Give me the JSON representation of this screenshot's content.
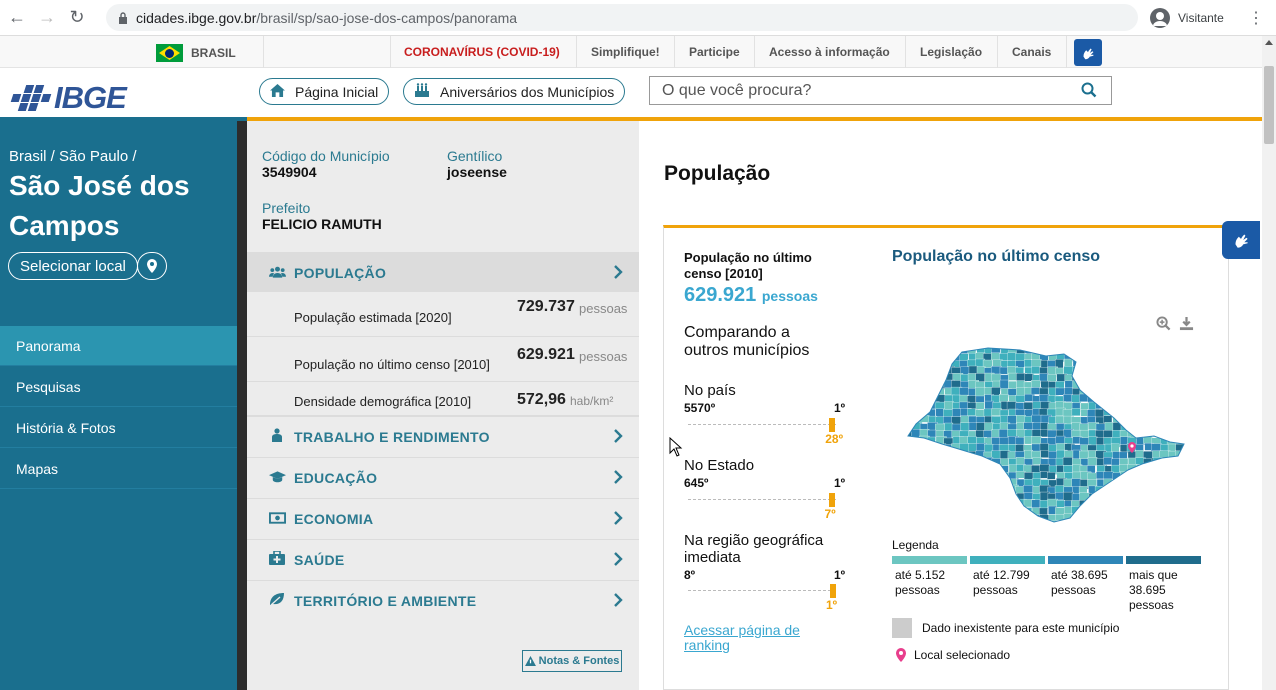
{
  "browser": {
    "url_host": "cidades.ibge.gov.br",
    "url_path": "/brasil/sp/sao-jose-dos-campos/panorama",
    "profile_label": "Visitante"
  },
  "govbar": {
    "country": "BRASIL",
    "links": [
      "CORONAVÍRUS (COVID-19)",
      "Simplifique!",
      "Participe",
      "Acesso à informação",
      "Legislação",
      "Canais"
    ]
  },
  "header": {
    "logo_text": "IBGE",
    "home_label": "Página Inicial",
    "anniv_label": "Aniversários dos Municípios",
    "search_placeholder": "O que você procura?"
  },
  "sidebar": {
    "breadcrumb": "Brasil / São Paulo /",
    "city_name": "São José dos Campos",
    "select_label": "Selecionar local",
    "nav": [
      "Panorama",
      "Pesquisas",
      "História & Fotos",
      "Mapas"
    ]
  },
  "info": {
    "codigo_label": "Código do Município",
    "codigo_value": "3549904",
    "gentilico_label": "Gentílico",
    "gentilico_value": "joseense",
    "prefeito_label": "Prefeito",
    "prefeito_value": "FELICIO RAMUTH"
  },
  "categories": {
    "populacao": "POPULAÇÃO",
    "trabalho": "TRABALHO E RENDIMENTO",
    "educacao": "EDUCAÇÃO",
    "economia": "ECONOMIA",
    "saude": "SAÚDE",
    "territorio": "TERRITÓRIO E AMBIENTE"
  },
  "indicators": [
    {
      "label": "População estimada [2020]",
      "value": "729.737",
      "unit": "pessoas"
    },
    {
      "label": "População no último censo [2010]",
      "value": "629.921",
      "unit": "pessoas"
    },
    {
      "label": "Densidade demográfica [2010]",
      "value": "572,96",
      "unit": "hab/km²"
    }
  ],
  "notas_label": "Notas & Fontes",
  "content": {
    "title": "População",
    "card_title": "População no último censo [2010]",
    "card_value": "629.921",
    "card_unit": "pessoas",
    "compare": "Comparando a outros municípios",
    "ranks": [
      {
        "title": "No país",
        "left": "5570º",
        "right": "1º",
        "pos": "28º",
        "fraction": 0.995
      },
      {
        "title": "No Estado",
        "left": "645º",
        "right": "1º",
        "pos": "7º",
        "fraction": 0.99
      },
      {
        "title": "Na região geográfica imediata",
        "left": "8º",
        "right": "1º",
        "pos": "1º",
        "fraction": 1.0
      }
    ],
    "rank_link": "Acessar página de ranking",
    "map_title": "População no último censo",
    "legend_title": "Legenda",
    "legend": [
      {
        "text": "até 5.152 pessoas",
        "color": "#6cc6c1"
      },
      {
        "text": "até 12.799 pessoas",
        "color": "#3fb0bd"
      },
      {
        "text": "até 38.695 pessoas",
        "color": "#2e86b8"
      },
      {
        "text": "mais que 38.695 pessoas",
        "color": "#1f6c8c"
      }
    ],
    "nodata_label": "Dado inexistente para este município",
    "selected_label": "Local selecionado"
  }
}
